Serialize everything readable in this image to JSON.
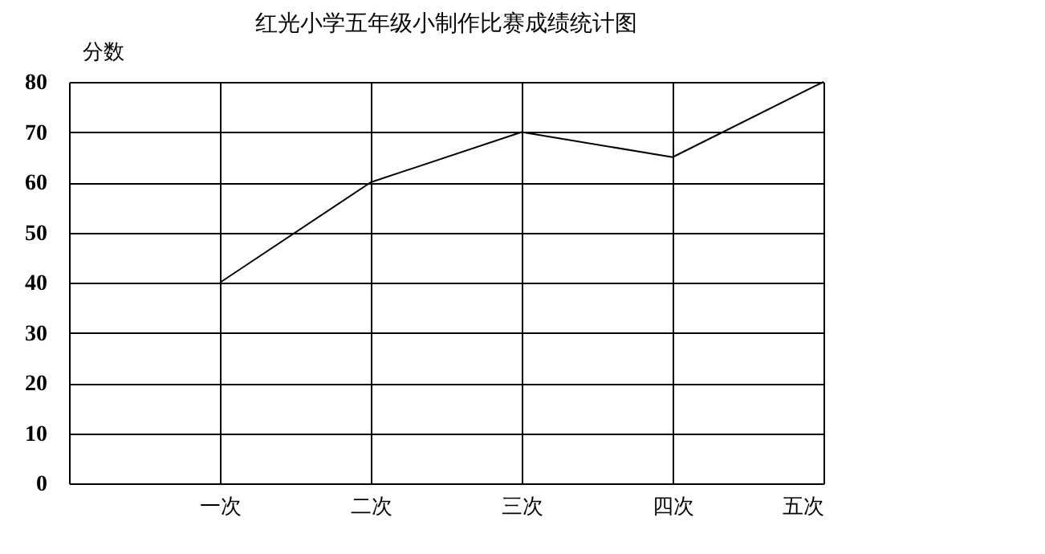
{
  "chart_data": {
    "type": "line",
    "title": "红光小学五年级小制作比赛成绩统计图",
    "ylabel": "分数",
    "categories": [
      "一次",
      "二次",
      "三次",
      "四次",
      "五次"
    ],
    "series": [
      {
        "color": "#000000",
        "values": [
          40,
          60,
          70,
          65,
          80
        ]
      }
    ],
    "ylim": [
      0,
      80
    ],
    "yticks": [
      0,
      10,
      20,
      30,
      40,
      50,
      60,
      70,
      80
    ],
    "grid": true,
    "marker": "none",
    "line_style": "solid"
  }
}
